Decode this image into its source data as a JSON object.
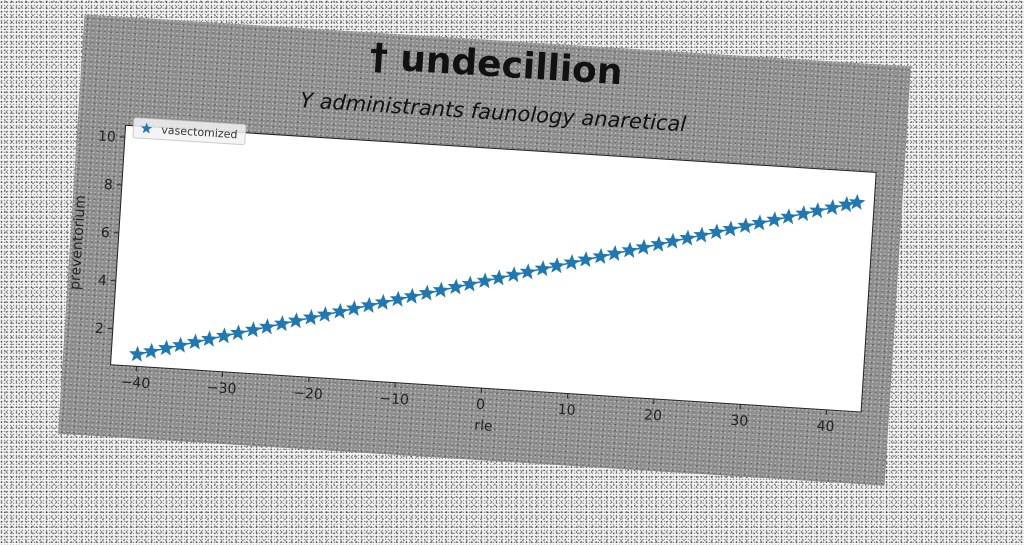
{
  "chart_data": {
    "type": "line",
    "title": "† undecillion",
    "subtitle": "Y administrants faunology anaretical",
    "xlabel": "rle",
    "ylabel": "preventorium",
    "xlim": [
      -43,
      44
    ],
    "ylim": [
      0.5,
      10.5
    ],
    "xticks": [
      -40,
      -30,
      -20,
      -10,
      0,
      10,
      20,
      30,
      40
    ],
    "yticks": [
      2,
      4,
      6,
      8,
      10
    ],
    "grid": false,
    "legend_position": "top-left",
    "marker": "star",
    "series": [
      {
        "name": "vasectomized",
        "color": "#1f77b4",
        "x": [
          -40,
          -38.4,
          -36.7,
          -35.1,
          -33.4,
          -31.8,
          -30.1,
          -28.5,
          -26.8,
          -25.2,
          -23.5,
          -21.9,
          -20.2,
          -18.6,
          -16.9,
          -15.3,
          -13.6,
          -12,
          -10.3,
          -8.7,
          -7,
          -5.4,
          -3.7,
          -2.1,
          -0.4,
          1.2,
          2.9,
          4.5,
          6.2,
          7.8,
          9.5,
          11.1,
          12.8,
          14.4,
          16.1,
          17.7,
          19.4,
          21,
          22.7,
          24.3,
          26,
          27.6,
          29.3,
          30.9,
          32.6,
          34.2,
          35.9,
          37.5,
          39.2,
          40.8,
          42
        ],
        "y": [
          1,
          1.16,
          1.33,
          1.49,
          1.66,
          1.82,
          1.99,
          2.15,
          2.32,
          2.48,
          2.65,
          2.81,
          2.98,
          3.14,
          3.31,
          3.47,
          3.64,
          3.8,
          3.97,
          4.13,
          4.3,
          4.46,
          4.63,
          4.79,
          4.96,
          5.12,
          5.29,
          5.45,
          5.62,
          5.78,
          5.95,
          6.11,
          6.28,
          6.44,
          6.61,
          6.77,
          6.94,
          7.1,
          7.27,
          7.43,
          7.6,
          7.76,
          7.93,
          8.09,
          8.26,
          8.42,
          8.59,
          8.75,
          8.92,
          9.08,
          9.2
        ]
      }
    ]
  },
  "colors": {
    "panel": "#8e8e8e",
    "plot_area": "#ffffff",
    "series": "#1f77b4"
  }
}
